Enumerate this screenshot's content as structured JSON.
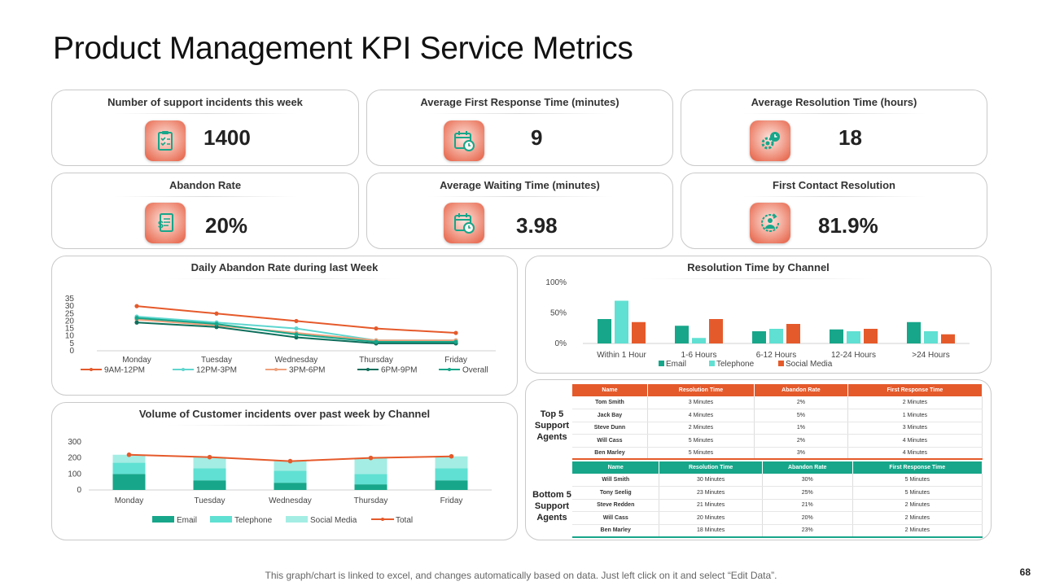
{
  "title": "Product Management KPI Service Metrics",
  "kpis": [
    {
      "title": "Number of support  incidents this week",
      "value": "1400",
      "icon": "clipboard-checklist-icon"
    },
    {
      "title": "Average First Response  Time (minutes)",
      "value": "9",
      "icon": "calendar-clock-icon"
    },
    {
      "title": "Average Resolution Time (hours)",
      "value": "18",
      "icon": "gear-clock-icon"
    },
    {
      "title": "Abandon Rate",
      "value": "20%",
      "icon": "document-dollar-icon"
    },
    {
      "title": "Average Waiting Time (minutes)",
      "value": "3.98",
      "icon": "calendar-clock-icon"
    },
    {
      "title": "First Contact Resolution",
      "value": "81.9%",
      "icon": "person-cycle-icon"
    }
  ],
  "chart_data": [
    {
      "type": "line",
      "title": "Daily Abandon Rate during last Week",
      "categories": [
        "Monday",
        "Tuesday",
        "Wednesday",
        "Thursday",
        "Friday"
      ],
      "yticks": [
        "35",
        "30",
        "25",
        "20",
        "15",
        "10",
        "5",
        "0"
      ],
      "ylim": [
        0,
        35
      ],
      "series": [
        {
          "name": "9AM-12PM",
          "color": "#e55a2b",
          "values": [
            30,
            25,
            20,
            15,
            12
          ]
        },
        {
          "name": "12PM-3PM",
          "color": "#5fd6cf",
          "values": [
            23,
            19,
            15,
            7,
            7
          ]
        },
        {
          "name": "3PM-6PM",
          "color": "#f0a07c",
          "values": [
            21,
            17,
            12,
            7,
            7
          ]
        },
        {
          "name": "6PM-9PM",
          "color": "#0f6f5c",
          "values": [
            19,
            16,
            9,
            5,
            5
          ]
        },
        {
          "name": "Overall",
          "color": "#17a68a",
          "values": [
            22,
            18,
            11,
            6,
            6
          ]
        }
      ],
      "legend": "bottom"
    },
    {
      "type": "bar",
      "title": "Resolution Time by Channel",
      "categories": [
        "Within 1 Hour",
        "1-6 Hours",
        "6-12 Hours",
        "12-24 Hours",
        ">24 Hours"
      ],
      "yticks": [
        "100%",
        "50%",
        "0%"
      ],
      "ylim": [
        0,
        100
      ],
      "series": [
        {
          "name": "Email",
          "color": "#17a68a",
          "values": [
            40,
            29,
            20,
            23,
            35
          ]
        },
        {
          "name": "Telephone",
          "color": "#5fe0d2",
          "values": [
            70,
            9,
            24,
            20,
            20
          ]
        },
        {
          "name": "Social Media",
          "color": "#e55a2b",
          "values": [
            35,
            40,
            32,
            24,
            15
          ]
        }
      ],
      "legend": "bottom"
    },
    {
      "type": "bar",
      "stacked": true,
      "title": "Volume of Customer  incidents over past week by Channel",
      "categories": [
        "Monday",
        "Tuesday",
        "Wednesday",
        "Thursday",
        "Friday"
      ],
      "yticks": [
        "300",
        "200",
        "100",
        "0"
      ],
      "ylim": [
        0,
        300
      ],
      "series": [
        {
          "name": "Email",
          "color": "#17a68a",
          "values": [
            100,
            60,
            45,
            35,
            60
          ]
        },
        {
          "name": "Telephone",
          "color": "#5fe0d2",
          "values": [
            70,
            75,
            75,
            65,
            75
          ]
        },
        {
          "name": "Social Media",
          "color": "#a4ede4",
          "values": [
            50,
            70,
            60,
            100,
            75
          ]
        },
        {
          "name": "Total",
          "color": "#e55a2b",
          "type": "line",
          "values": [
            220,
            205,
            180,
            200,
            210
          ]
        }
      ],
      "legend": "bottom"
    }
  ],
  "agents": {
    "headers": [
      "Name",
      "Resolution Time",
      "Abandon Rate",
      "First Response Time"
    ],
    "top_label": "Top 5 Support Agents",
    "bottom_label": "Bottom 5 Support Agents",
    "top": [
      [
        "Tom  Smith",
        "3 Minutes",
        "2%",
        "2 Minutes"
      ],
      [
        "Jack Bay",
        "4 Minutes",
        "5%",
        "1 Minutes"
      ],
      [
        "Steve Dunn",
        "2 Minutes",
        "1%",
        "3 Minutes"
      ],
      [
        "Will Cass",
        "5 Minutes",
        "2%",
        "4 Minutes"
      ],
      [
        "Ben Marley",
        "5 Minutes",
        "3%",
        "4 Minutes"
      ]
    ],
    "bottom": [
      [
        "Will Smith",
        "30 Minutes",
        "30%",
        "5 Minutes"
      ],
      [
        "Tony  Seelig",
        "23 Minutes",
        "25%",
        "5 Minutes"
      ],
      [
        "Steve Redden",
        "21 Minutes",
        "21%",
        "2 Minutes"
      ],
      [
        "Will Cass",
        "20 Minutes",
        "20%",
        "2 Minutes"
      ],
      [
        "Ben Marley",
        "18 Minutes",
        "23%",
        "2 Minutes"
      ]
    ]
  },
  "footer": "This graph/chart is linked to excel, and changes automatically based on data. Just left click on it and select “Edit Data”.",
  "page_number": "68",
  "colors": {
    "accent_orange": "#e55a2b",
    "accent_teal": "#17a68a"
  }
}
